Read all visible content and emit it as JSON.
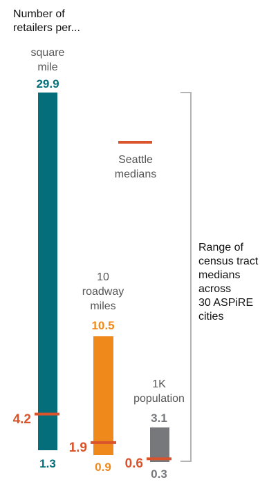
{
  "header": {
    "line1": "Number of",
    "line2": "retailers per..."
  },
  "legend": {
    "line1": "Seattle",
    "line2": "medians",
    "color": "#d9532b"
  },
  "bracket": {
    "lines": [
      "Range of",
      "census tract",
      "medians",
      "across",
      "30 ASPiRE",
      "cities"
    ],
    "color": "#b3b3b3"
  },
  "chart_data": {
    "type": "range-bar",
    "series": [
      {
        "name_lines": [
          "square",
          "mile"
        ],
        "max": 29.9,
        "min": 1.3,
        "median": 4.2,
        "max_label": "29.9",
        "min_label": "1.3",
        "median_label": "4.2",
        "color": "#046e7a"
      },
      {
        "name_lines": [
          "10",
          "roadway",
          "miles"
        ],
        "max": 10.5,
        "min": 0.9,
        "median": 1.9,
        "max_label": "10.5",
        "min_label": "0.9",
        "median_label": "1.9",
        "color": "#f0891c"
      },
      {
        "name_lines": [
          "1K",
          "population"
        ],
        "max": 3.1,
        "min": 0.3,
        "median": 0.6,
        "max_label": "3.1",
        "min_label": "0.3",
        "median_label": "0.6",
        "color": "#77787b"
      }
    ],
    "median_color": "#d9532b"
  }
}
